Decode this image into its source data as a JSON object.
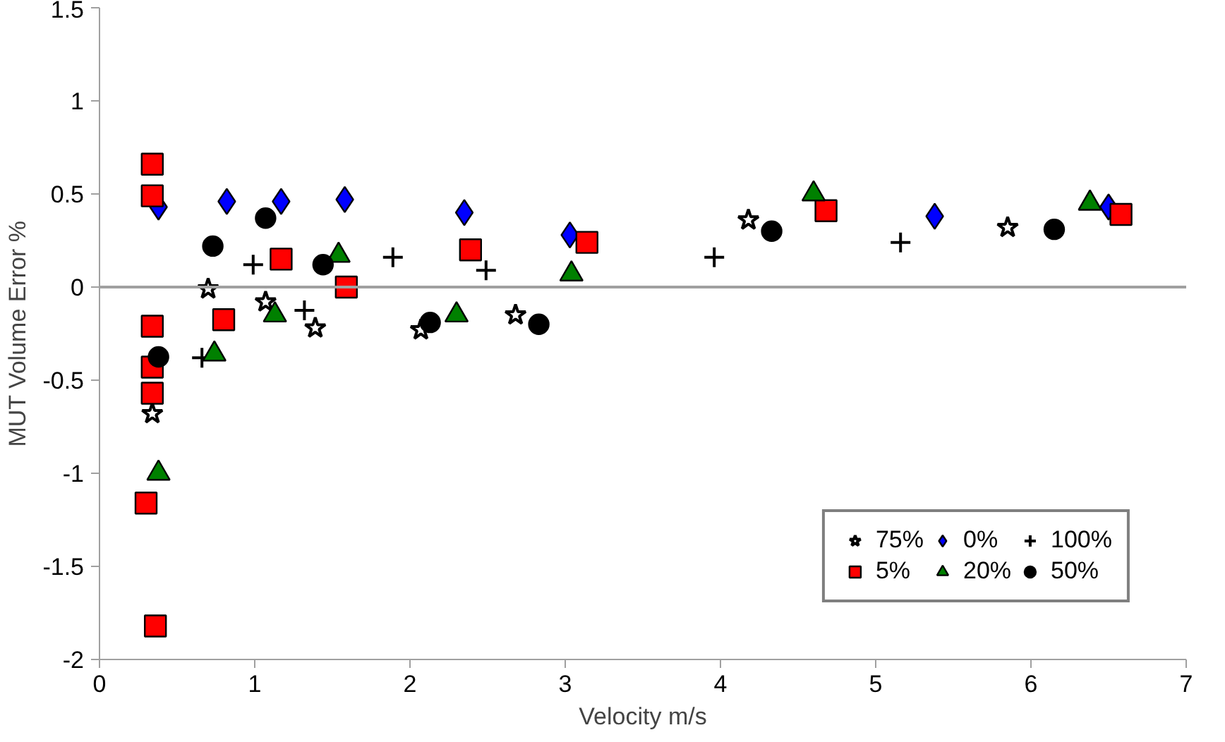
{
  "chart_data": {
    "type": "scatter",
    "xlabel": "Velocity m/s",
    "ylabel": "MUT Volume Error %",
    "xlim": [
      0,
      7
    ],
    "ylim": [
      -2,
      1.5
    ],
    "xticks": [
      0,
      1,
      2,
      3,
      4,
      5,
      6,
      7
    ],
    "yticks": [
      -2,
      -1.5,
      -1,
      -0.5,
      0,
      0.5,
      1,
      1.5
    ],
    "grid": false,
    "legend": "bottom right",
    "ref_lines": [
      {
        "axis": "y",
        "value": 0,
        "color": "#a0a0a0"
      }
    ],
    "series": [
      {
        "name": "75%",
        "color": "#000000",
        "marker": "star",
        "x": [
          0.34,
          0.7,
          1.07,
          1.39,
          2.07,
          2.68,
          4.18,
          5.85
        ],
        "values": [
          -0.68,
          -0.01,
          -0.08,
          -0.22,
          -0.23,
          -0.15,
          0.36,
          0.32
        ]
      },
      {
        "name": "0%",
        "color": "#0000ff",
        "marker": "diamond",
        "x": [
          0.38,
          0.82,
          1.17,
          1.58,
          2.35,
          3.03,
          5.38,
          6.5
        ],
        "values": [
          0.43,
          0.46,
          0.46,
          0.47,
          0.4,
          0.28,
          0.38,
          0.43
        ]
      },
      {
        "name": "100%",
        "color": "#000000",
        "marker": "cross",
        "x": [
          0.66,
          0.99,
          1.32,
          1.89,
          2.49,
          3.96,
          5.16
        ],
        "values": [
          -0.38,
          0.12,
          -0.125,
          0.16,
          0.09,
          0.16,
          0.24
        ]
      },
      {
        "name": "5%",
        "color": "#ff0000",
        "marker": "square",
        "x": [
          0.34,
          0.34,
          0.34,
          0.34,
          0.34,
          0.3,
          0.36,
          0.8,
          1.17,
          1.59,
          2.39,
          3.14,
          4.68,
          6.58
        ],
        "values": [
          0.66,
          0.49,
          -0.21,
          -0.43,
          -0.57,
          -1.16,
          -1.82,
          -0.175,
          0.15,
          0,
          0.2,
          0.24,
          0.41,
          0.39
        ]
      },
      {
        "name": "20%",
        "color": "#008000",
        "marker": "triangle",
        "x": [
          0.38,
          0.74,
          1.13,
          1.54,
          2.3,
          3.04,
          4.6,
          6.38
        ],
        "values": [
          -1.0,
          -0.36,
          -0.15,
          0.17,
          -0.15,
          0.07,
          0.5,
          0.45
        ]
      },
      {
        "name": "50%",
        "color": "#000000",
        "marker": "circle",
        "x": [
          0.38,
          0.73,
          1.07,
          1.44,
          2.13,
          2.83,
          4.33,
          6.15
        ],
        "values": [
          -0.375,
          0.22,
          0.37,
          0.12,
          -0.19,
          -0.2,
          0.3,
          0.31
        ]
      }
    ]
  }
}
